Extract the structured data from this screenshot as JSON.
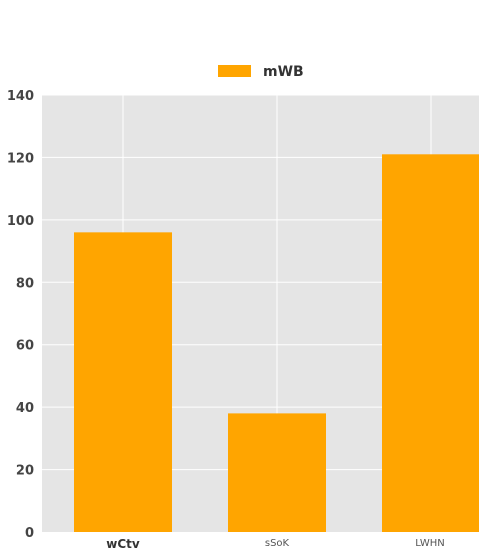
{
  "chart_data": {
    "type": "bar",
    "categories": [
      "wCtv",
      "sSoK",
      "LWHN"
    ],
    "series": [
      {
        "name": "mWB",
        "values": [
          96,
          38,
          121
        ],
        "color": "#ffa500"
      }
    ],
    "ylim": [
      0,
      140
    ],
    "yticks": [
      0,
      20,
      40,
      60,
      80,
      100,
      120,
      140
    ],
    "grid": true,
    "legend": "top-center",
    "plot_background": "#e5e5e5",
    "grid_color": "#ffffff"
  }
}
